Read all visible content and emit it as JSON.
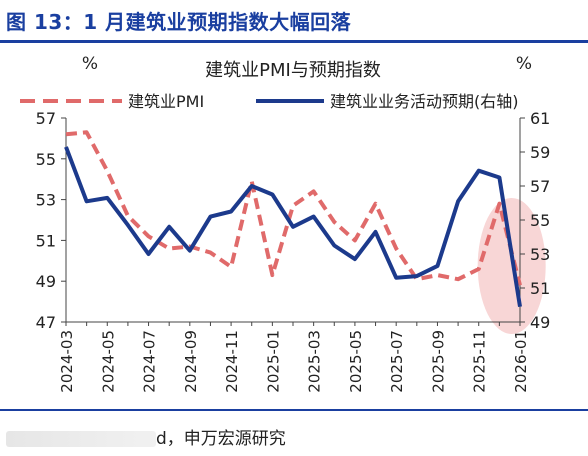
{
  "figure": {
    "title": "图 13：1 月建筑业预期指数大幅回落",
    "source_visible": "d，申万宏源研究"
  },
  "chart_data": {
    "type": "line",
    "title": "建筑业PMI与预期指数",
    "left_unit": "%",
    "right_unit": "%",
    "x": [
      "2024-03",
      "2024-04",
      "2024-05",
      "2024-06",
      "2024-07",
      "2024-08",
      "2024-09",
      "2024-10",
      "2024-11",
      "2024-12",
      "2025-01",
      "2025-02",
      "2025-03",
      "2025-04",
      "2025-05",
      "2025-06",
      "2025-07",
      "2025-08",
      "2025-09",
      "2025-10",
      "2025-11",
      "2025-12",
      "2026-01"
    ],
    "x_tick_labels": [
      "2024-03",
      "2024-05",
      "2024-07",
      "2024-09",
      "2024-11",
      "2025-01",
      "2025-03",
      "2025-05",
      "2025-07",
      "2025-09",
      "2025-11",
      "2026-01"
    ],
    "left_axis": {
      "ylim": [
        47,
        57
      ],
      "ticks": [
        47,
        49,
        51,
        53,
        55,
        57
      ]
    },
    "right_axis": {
      "ylim": [
        49,
        61
      ],
      "ticks": [
        49,
        51,
        53,
        55,
        57,
        59,
        61
      ]
    },
    "series": [
      {
        "name": "建筑业PMI",
        "axis": "left",
        "style": "dashed",
        "color": "#e06a6a",
        "values": [
          56.2,
          56.3,
          54.4,
          52.2,
          51.2,
          50.6,
          50.7,
          50.4,
          49.7,
          53.9,
          49.3,
          52.7,
          53.4,
          51.9,
          51.0,
          52.8,
          50.6,
          49.1,
          49.3,
          49.1,
          49.6,
          52.8,
          48.8
        ]
      },
      {
        "name": "建筑业业务活动预期(右轴)",
        "axis": "right",
        "style": "solid",
        "color": "#1c3a8c",
        "values": [
          59.3,
          56.1,
          56.3,
          54.7,
          53.0,
          54.6,
          53.2,
          55.2,
          55.5,
          57.0,
          56.5,
          54.6,
          55.2,
          53.5,
          52.7,
          54.3,
          51.6,
          51.7,
          52.3,
          56.1,
          57.9,
          57.5,
          49.9
        ]
      }
    ],
    "highlight": {
      "shape": "ellipse",
      "around": [
        "2025-12",
        "2026-01"
      ],
      "color": "#f6c8c8"
    }
  }
}
